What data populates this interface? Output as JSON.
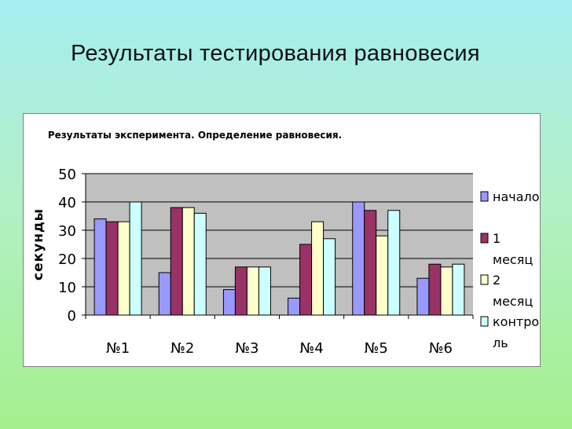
{
  "slide": {
    "title": "Результаты тестирования равновесия"
  },
  "colors": {
    "plot_bg": "#c0c0c0",
    "series": [
      "#9999ff",
      "#993366",
      "#ffffcc",
      "#ccffff"
    ]
  },
  "chart_data": {
    "type": "bar",
    "title": "Результаты эксперимента. Определение равновесия.",
    "ylabel": "секунды",
    "xlabel": "",
    "ylim": [
      0,
      50
    ],
    "yticks": [
      0,
      10,
      20,
      30,
      40,
      50
    ],
    "grid": true,
    "legend": "right",
    "categories": [
      "№1",
      "№2",
      "№3",
      "№4",
      "№5",
      "№6"
    ],
    "series": [
      {
        "name": "начало",
        "legend_lines": [
          "начало"
        ],
        "values": [
          34,
          15,
          9,
          6,
          40,
          13
        ]
      },
      {
        "name": "1 месяц",
        "legend_lines": [
          "1",
          "месяц"
        ],
        "values": [
          33,
          38,
          17,
          25,
          37,
          18
        ]
      },
      {
        "name": "2 месяц",
        "legend_lines": [
          "2",
          "месяц"
        ],
        "values": [
          33,
          38,
          17,
          33,
          28,
          17
        ]
      },
      {
        "name": "контроль",
        "legend_lines": [
          "контро",
          "ль"
        ],
        "values": [
          40,
          36,
          17,
          27,
          37,
          18
        ]
      }
    ]
  }
}
